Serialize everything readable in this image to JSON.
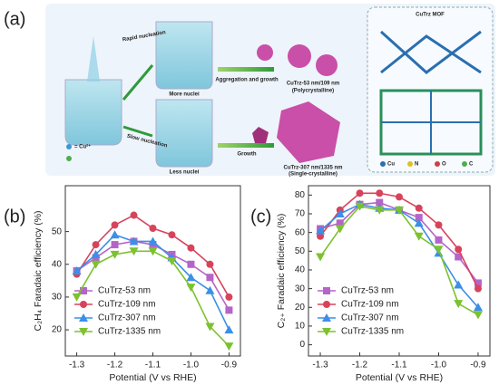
{
  "panel_labels": [
    "(a)",
    "(b)",
    "(c)"
  ],
  "panel_a": {
    "rapid": "Rapid nucleation",
    "more": "More nuclei",
    "aggregation": "Aggregation and growth",
    "poly_name": "CuTrz-53 nm/109 nm",
    "poly": "(Polycrystalline)",
    "slow": "Slow nucleation",
    "less": "Less nuclei",
    "growth": "Growth",
    "single_name": "CuTrz-307 nm/1335 nm",
    "single": "(Single-crystalline)",
    "mof": "CuTrz MOF",
    "cu_ion": "= Cu²⁺",
    "elements": [
      "Cu",
      "N",
      "O",
      "C"
    ]
  },
  "chart_data": [
    {
      "type": "line",
      "ylabel": "C₂H₄ Faradaic efficiency (%)",
      "xlabel": "Potential (V vs RHE)",
      "x": [
        -1.3,
        -1.25,
        -1.2,
        -1.15,
        -1.1,
        -1.05,
        -1.0,
        -0.95,
        -0.9
      ],
      "xlim": [
        -1.33,
        -0.87
      ],
      "xticks": [
        -1.3,
        -1.2,
        -1.1,
        {
          "value": -1.0,
          "label": "-1.0"
        },
        -0.9
      ],
      "ylim": [
        12,
        64
      ],
      "yticks": [
        20,
        30,
        40,
        50
      ],
      "legend": "lower left",
      "series": [
        {
          "name": "CuTrz-53 nm",
          "color": "#b565c8",
          "marker": "square",
          "values": [
            38,
            42,
            46,
            47,
            46,
            43,
            40,
            36,
            26
          ]
        },
        {
          "name": "CuTrz-109 nm",
          "color": "#d8435c",
          "marker": "circle",
          "values": [
            37,
            46,
            52,
            55,
            51,
            49,
            45,
            40,
            30
          ]
        },
        {
          "name": "CuTrz-307 nm",
          "color": "#3b8fe6",
          "marker": "triangle-up",
          "values": [
            38,
            43,
            49,
            47,
            47,
            42,
            36,
            32,
            20
          ]
        },
        {
          "name": "CuTrz-1335 nm",
          "color": "#7cc230",
          "marker": "triangle-down",
          "values": [
            30,
            40,
            43,
            44,
            44,
            41,
            33,
            21,
            15
          ]
        }
      ]
    },
    {
      "type": "line",
      "ylabel": "C₂₊ Faradaic efficiency (%)",
      "xlabel": "Potential (V vs RHE)",
      "x": [
        -1.3,
        -1.25,
        -1.2,
        -1.15,
        -1.1,
        -1.05,
        -1.0,
        -0.95,
        -0.9
      ],
      "xlim": [
        -1.33,
        -0.87
      ],
      "xticks": [
        -1.3,
        -1.2,
        -1.1,
        {
          "value": -1.0,
          "label": "-1.0"
        },
        -0.9
      ],
      "ylim": [
        -6,
        85
      ],
      "yticks": [
        0,
        10,
        20,
        30,
        40,
        50,
        60,
        70,
        80
      ],
      "legend": "lower left",
      "series": [
        {
          "name": "CuTrz-53 nm",
          "color": "#b565c8",
          "marker": "square",
          "values": [
            62,
            65,
            75,
            76,
            72,
            68,
            56,
            47,
            33
          ]
        },
        {
          "name": "CuTrz-109 nm",
          "color": "#d8435c",
          "marker": "circle",
          "values": [
            58,
            72,
            81,
            81,
            79,
            73,
            64,
            51,
            30
          ]
        },
        {
          "name": "CuTrz-307 nm",
          "color": "#3b8fe6",
          "marker": "triangle-up",
          "values": [
            61,
            70,
            75,
            73,
            72,
            65,
            49,
            32,
            20
          ]
        },
        {
          "name": "CuTrz-1335 nm",
          "color": "#7cc230",
          "marker": "triangle-down",
          "values": [
            47,
            62,
            74,
            72,
            72,
            58,
            51,
            22,
            16
          ]
        }
      ]
    }
  ]
}
